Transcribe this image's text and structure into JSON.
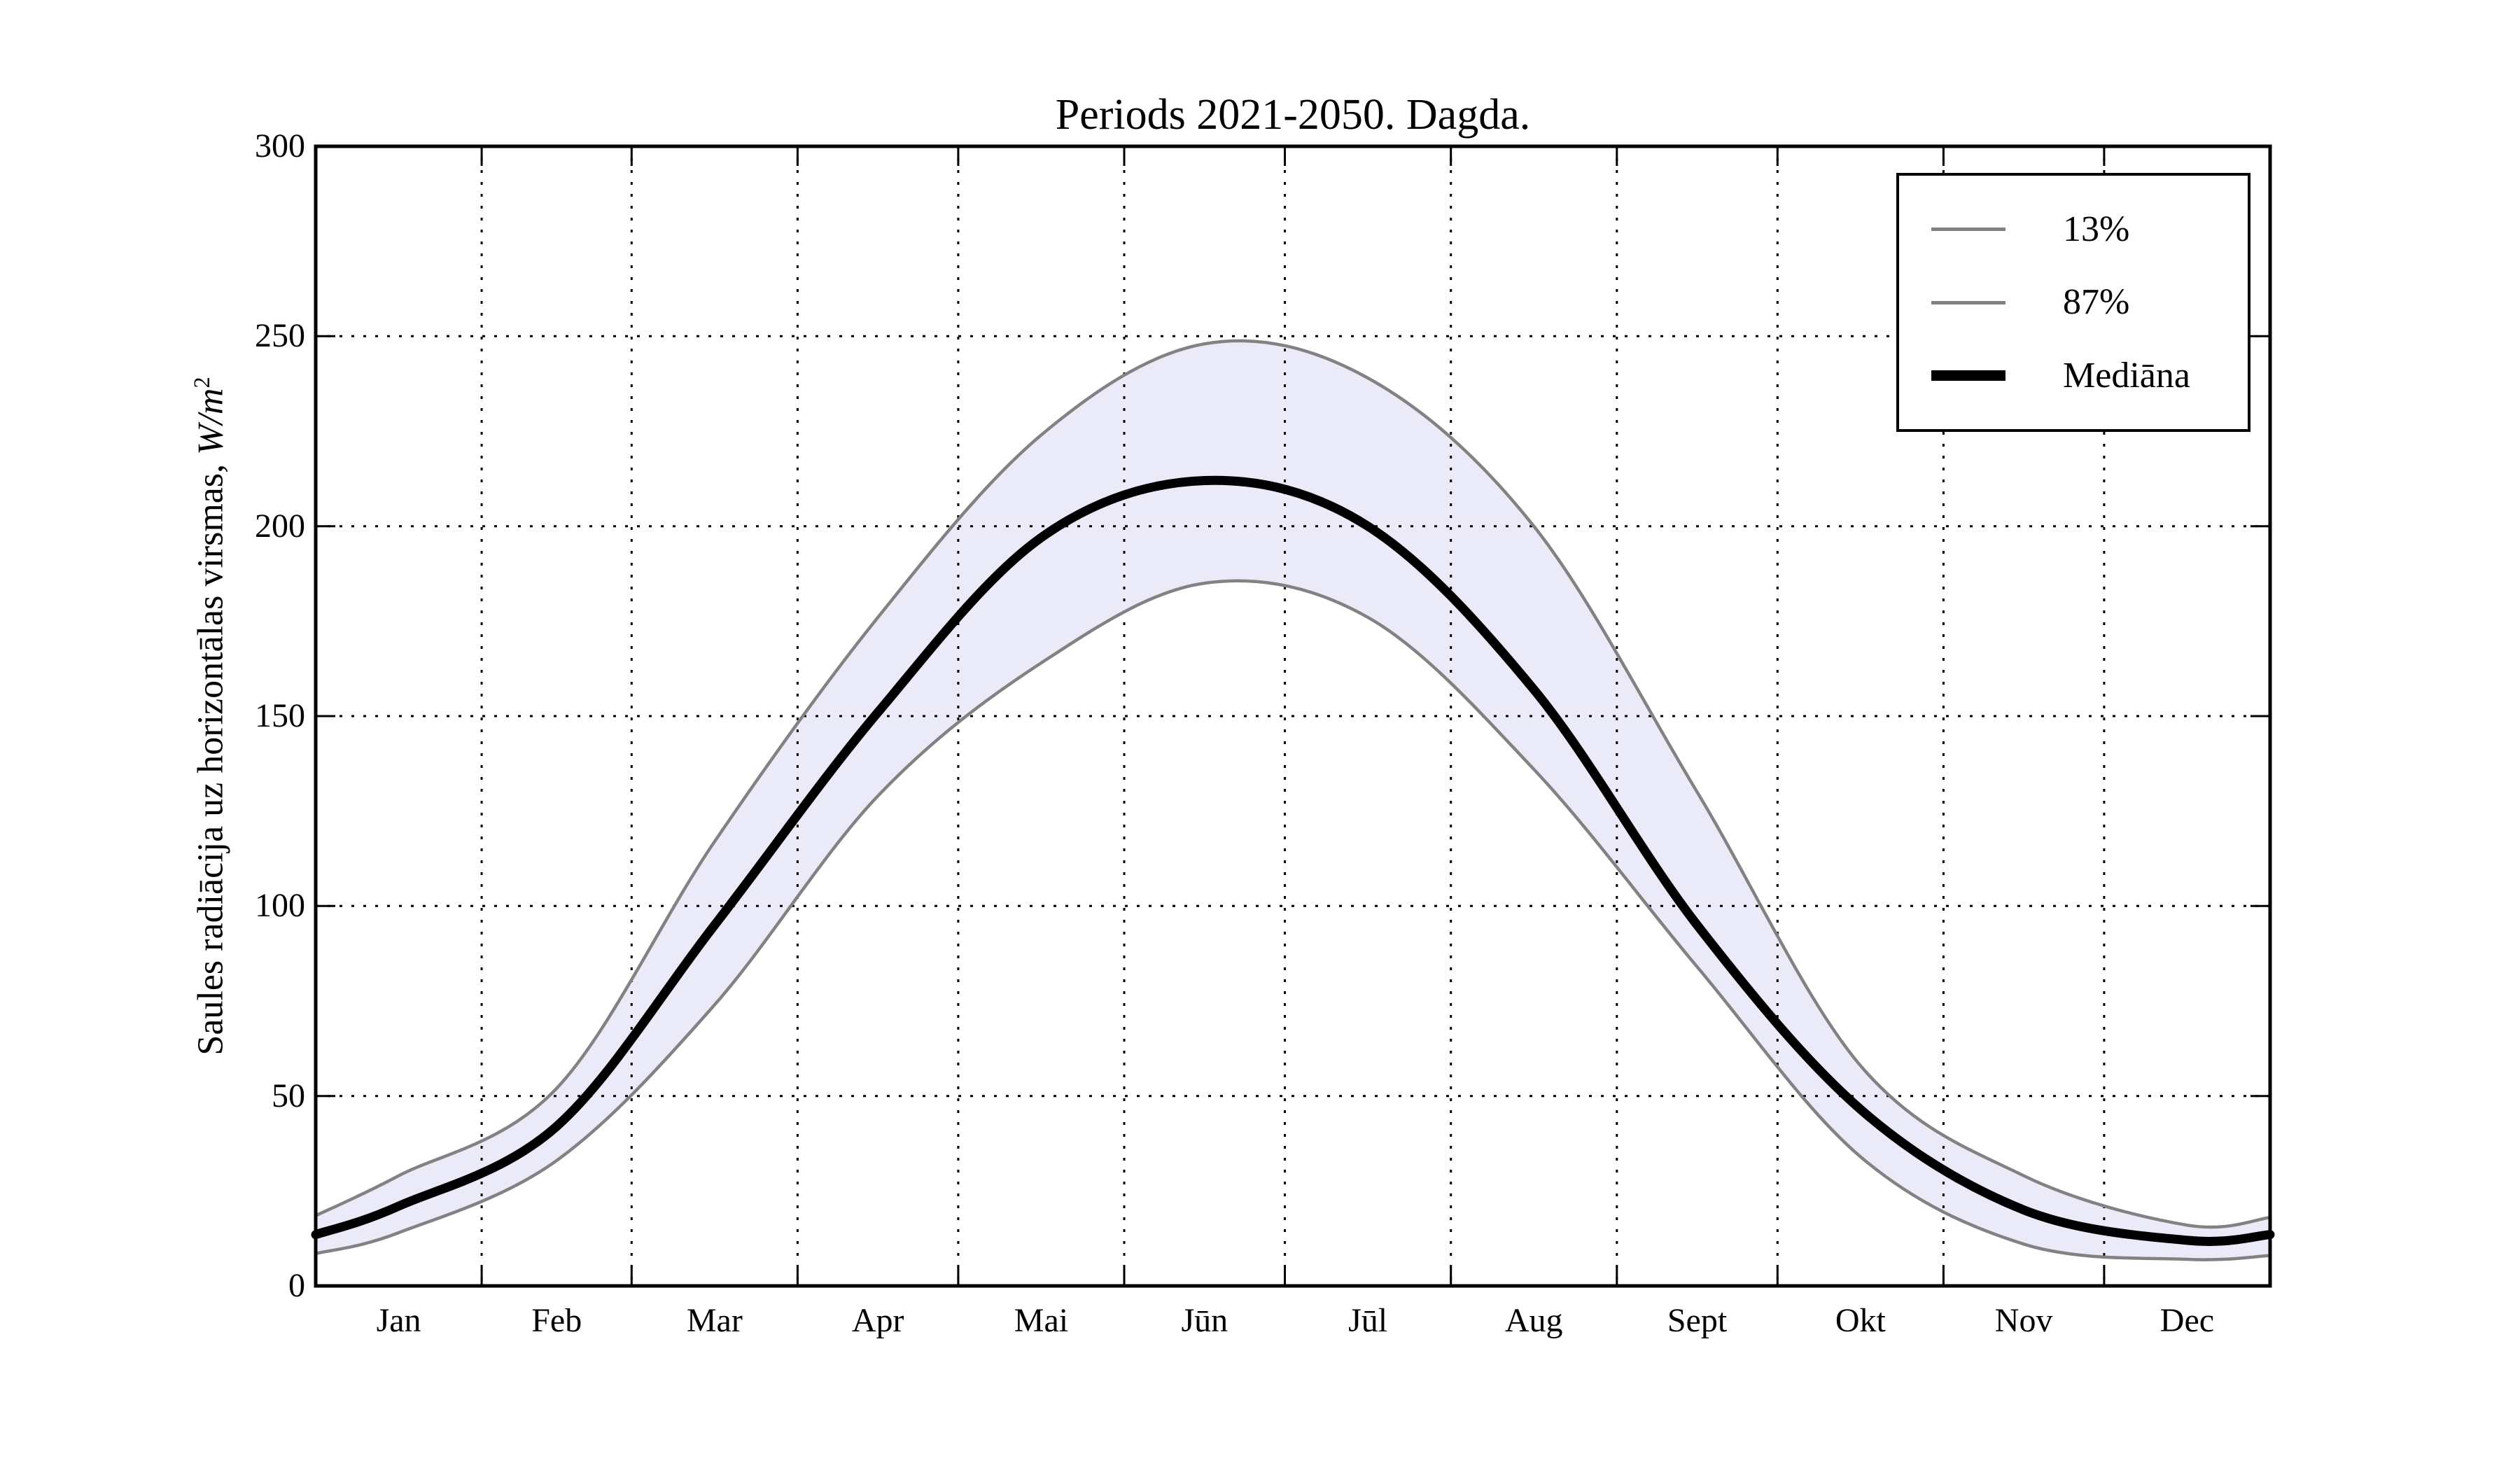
{
  "title": "Periods 2021-2050. Dagda.",
  "y_axis": {
    "label_text": "Saules radiācija uz horizontālas virsmas, ",
    "label_math": "W/m",
    "label_sup": "2",
    "tick_labels": [
      "0",
      "50",
      "100",
      "150",
      "200",
      "250",
      "300"
    ]
  },
  "x_axis": {
    "tick_labels": [
      "Jan",
      "Feb",
      "Mar",
      "Apr",
      "Mai",
      "Jūn",
      "Jūl",
      "Aug",
      "Sept",
      "Okt",
      "Nov",
      "Dec"
    ]
  },
  "legend": {
    "items": [
      {
        "label": "13%",
        "style": "thin-gray"
      },
      {
        "label": "87%",
        "style": "thin-gray"
      },
      {
        "label": "Mediāna",
        "style": "thick-black"
      }
    ]
  },
  "colors": {
    "percentile_line": "#828282",
    "median_line": "#000000",
    "band_fill": "#EAEAF8",
    "grid": "#000000",
    "frame": "#000000",
    "background": "#FFFFFF"
  },
  "chart_data": {
    "type": "line",
    "title": "Periods 2021-2050. Dagda.",
    "xlabel": "",
    "ylabel": "Saules radiācija uz horizontālas virsmas, W/m²",
    "ylim": [
      0,
      300
    ],
    "yticks": [
      0,
      50,
      100,
      150,
      200,
      250,
      300
    ],
    "grid": "dotted",
    "legend_position": "upper right",
    "categories": [
      "Jan",
      "Feb",
      "Mar",
      "Apr",
      "Mai",
      "Jūn",
      "Jūl",
      "Aug",
      "Sept",
      "Okt",
      "Nov",
      "Dec"
    ],
    "month_center_days": [
      15.5,
      45,
      74.5,
      105,
      135.5,
      166,
      196.5,
      227.5,
      258,
      288.5,
      319,
      349.5
    ],
    "month_boundary_days": [
      31,
      59,
      90,
      120,
      151,
      181,
      212,
      243,
      273,
      304,
      334
    ],
    "days_in_year": 365,
    "band": {
      "between": [
        "13%",
        "87%"
      ],
      "fill": "#EAEAF8"
    },
    "series": [
      {
        "name": "13%",
        "role": "lower-percentile",
        "color": "#828282",
        "line_width": 4.5,
        "monthly_values": [
          14,
          33,
          74,
          129,
          164,
          185,
          176,
          136,
          84,
          34,
          11,
          7
        ],
        "year_start_value": 8.5,
        "year_end_value": 8
      },
      {
        "name": "87%",
        "role": "upper-percentile",
        "color": "#828282",
        "line_width": 4.5,
        "monthly_values": [
          29,
          52,
          117,
          176,
          224,
          248,
          239,
          200,
          130,
          58,
          29,
          16
        ],
        "year_start_value": 18.5,
        "year_end_value": 18
      },
      {
        "name": "Mediāna",
        "role": "median",
        "color": "#000000",
        "line_width": 13,
        "monthly_values": [
          21,
          42,
          95,
          151,
          197,
          212,
          200,
          157,
          95,
          46.5,
          20,
          12
        ],
        "year_start_value": 13.5,
        "year_end_value": 13.5
      }
    ]
  }
}
